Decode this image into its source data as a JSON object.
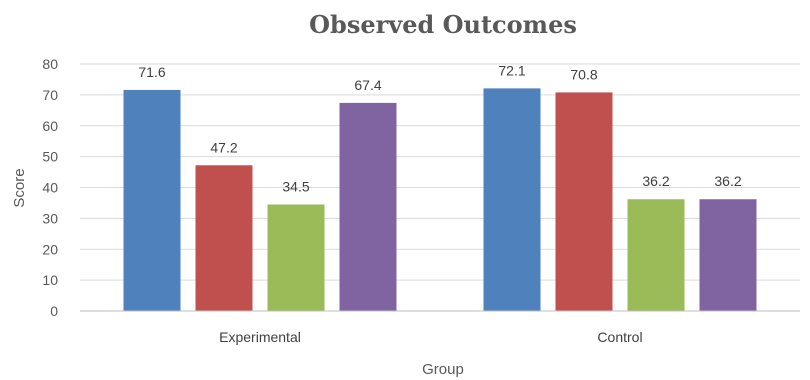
{
  "chart_data": {
    "type": "bar",
    "title": "Observed Outcomes",
    "xlabel": "Group",
    "ylabel": "Score",
    "categories": [
      "Experimental",
      "Control"
    ],
    "ylim": [
      0,
      80
    ],
    "yticks": [
      0,
      10,
      20,
      30,
      40,
      50,
      60,
      70,
      80
    ],
    "grid": true,
    "legend": "none",
    "series": [
      {
        "color": "#4F81BD",
        "values": [
          71.6,
          72.1
        ],
        "labels": [
          "71.6",
          "72.1"
        ]
      },
      {
        "color": "#C0504D",
        "values": [
          47.2,
          70.8
        ],
        "labels": [
          "47.2",
          "70.8"
        ]
      },
      {
        "color": "#9BBB59",
        "values": [
          34.5,
          36.2
        ],
        "labels": [
          "34.5",
          "36.2"
        ]
      },
      {
        "color": "#8064A2",
        "values": [
          67.4,
          36.2
        ],
        "labels": [
          "67.4",
          "36.2"
        ]
      }
    ]
  }
}
